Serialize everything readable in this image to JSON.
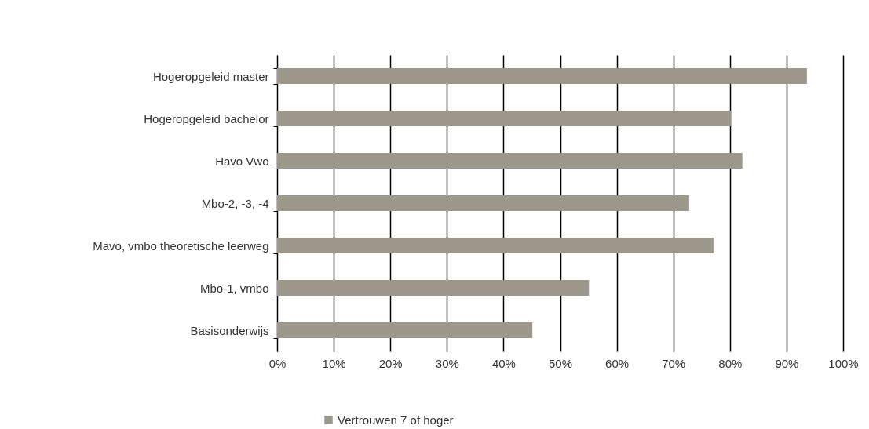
{
  "chart_data": {
    "type": "bar",
    "orientation": "horizontal",
    "categories": [
      "Hogeropgeleid master",
      "Hogeropgeleid bachelor",
      "Havo Vwo",
      "Mbo-2, -3, -4",
      "Mavo, vmbo theoretische leerweg",
      "Mbo-1, vmbo",
      "Basisonderwijs"
    ],
    "series": [
      {
        "name": "Vertrouwen 7 of hoger",
        "color": "#9e978b",
        "values": [
          93.6,
          80.2,
          82.2,
          72.8,
          77.1,
          55.1,
          45.1
        ]
      }
    ],
    "xlim": [
      0,
      100
    ],
    "xticks": [
      {
        "value": 0,
        "label": "0%"
      },
      {
        "value": 10,
        "label": "10%"
      },
      {
        "value": 20,
        "label": "20%"
      },
      {
        "value": 30,
        "label": "30%"
      },
      {
        "value": 40,
        "label": "40%"
      },
      {
        "value": 50,
        "label": "50%"
      },
      {
        "value": 60,
        "label": "60%"
      },
      {
        "value": 70,
        "label": "70%"
      },
      {
        "value": 80,
        "label": "80%"
      },
      {
        "value": 90,
        "label": "90%"
      },
      {
        "value": 100,
        "label": "100%"
      }
    ],
    "grid": "x",
    "legend": "bottom"
  }
}
